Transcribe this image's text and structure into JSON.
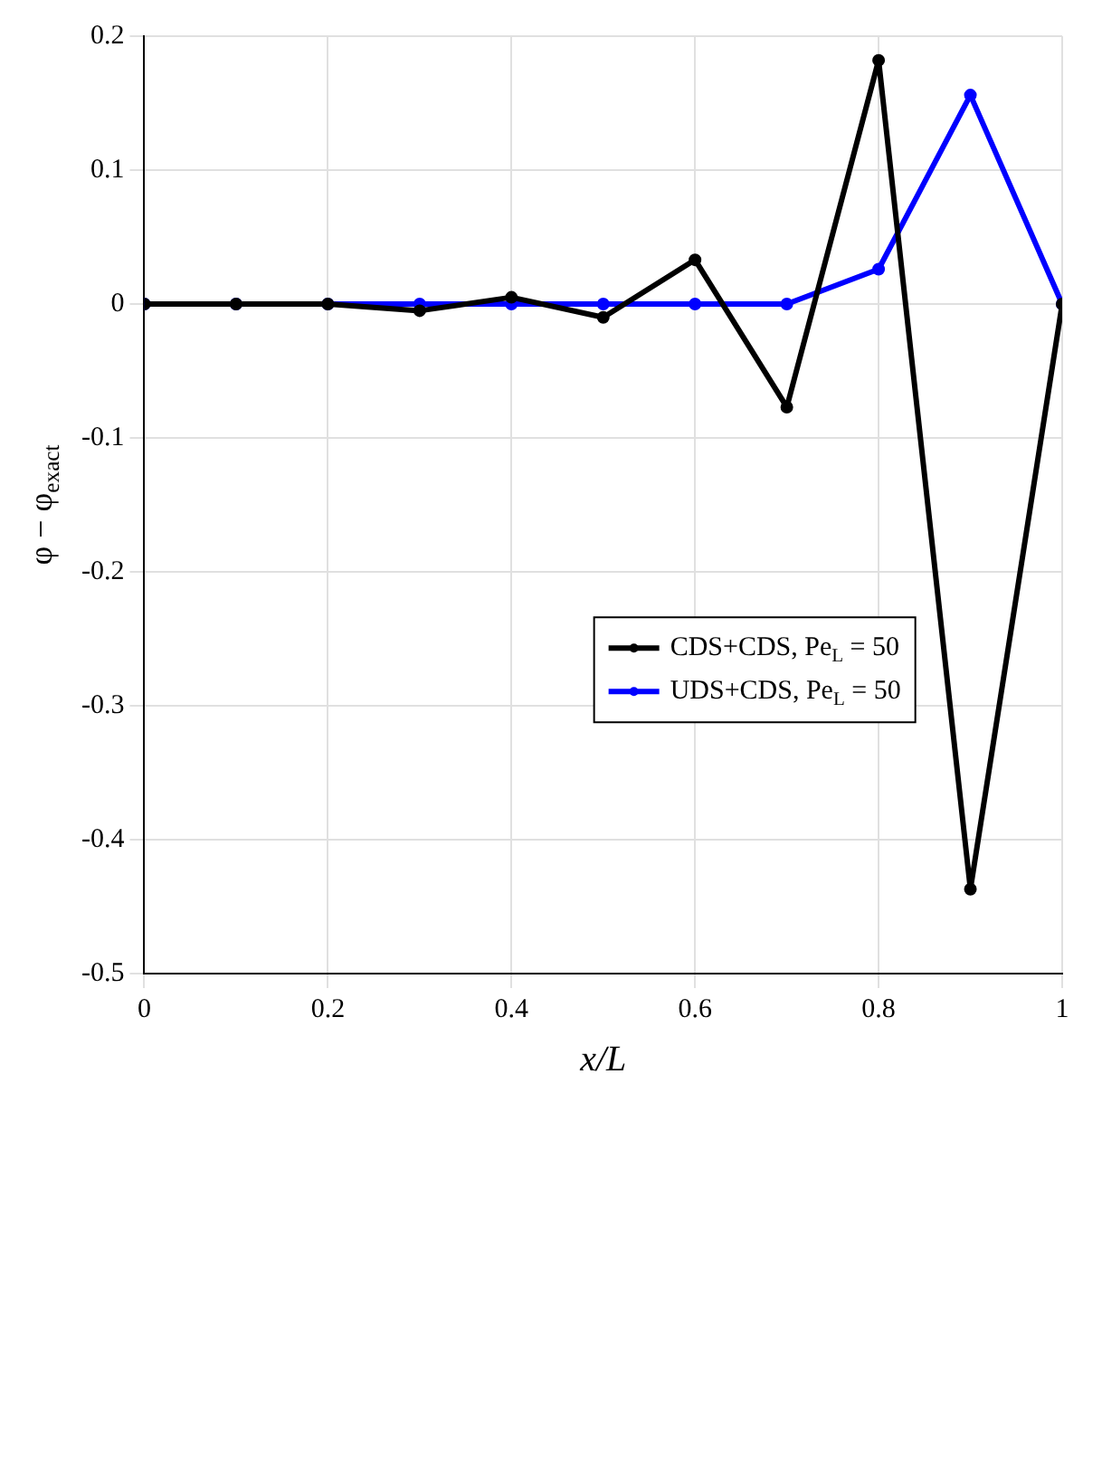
{
  "chart_data": {
    "type": "line",
    "xlabel": "x/L",
    "ylabel": "φ − φ$_{exact}$",
    "x": [
      0,
      0.1,
      0.2,
      0.3,
      0.4,
      0.5,
      0.6,
      0.7,
      0.8,
      0.9,
      1
    ],
    "series": [
      {
        "name": "CDS+CDS, Pe$_{L}$ = 50",
        "color": "#000000",
        "values": [
          0,
          0,
          0,
          -0.005,
          0.005,
          -0.01,
          0.033,
          -0.077,
          0.182,
          -0.437,
          0
        ]
      },
      {
        "name": "UDS+CDS, Pe$_{L}$ = 50",
        "color": "#0000ff",
        "values": [
          0,
          0,
          0,
          0,
          0,
          0,
          0,
          0,
          0.026,
          0.156,
          0
        ]
      }
    ],
    "xlim": [
      0,
      1
    ],
    "xticks": [
      0,
      0.2,
      0.4,
      0.6,
      0.8,
      1
    ],
    "ylim": [
      -0.5,
      0.2
    ],
    "yticks": [
      -0.5,
      -0.4,
      -0.3,
      -0.2,
      -0.1,
      0,
      0.1,
      0.2
    ],
    "grid": true,
    "legend": "bottom right",
    "marker": "circle",
    "line_style": "solid"
  }
}
